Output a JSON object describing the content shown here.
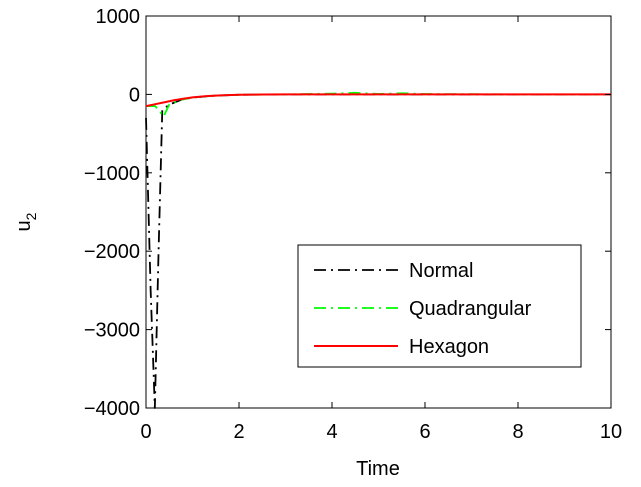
{
  "chart_data": {
    "type": "line",
    "xlabel": "Time",
    "ylabel": "u",
    "ylabel_subscript": "2",
    "xlim": [
      0,
      10
    ],
    "ylim": [
      -4000,
      1000
    ],
    "xticks": [
      0,
      2,
      4,
      6,
      8,
      10
    ],
    "yticks": [
      1000,
      0,
      -1000,
      -2000,
      -3000,
      -4000
    ],
    "xtick_labels": [
      "0",
      "2",
      "4",
      "6",
      "8",
      "10"
    ],
    "ytick_labels": [
      "1000",
      "0",
      "−1000",
      "−2000",
      "−3000",
      "−4000"
    ],
    "grid": false,
    "legend_position": "lower-right",
    "series": [
      {
        "name": "Normal",
        "color": "#000000",
        "style": "dash-dot",
        "points": [
          [
            0,
            -300
          ],
          [
            0.1,
            -2500
          ],
          [
            0.19,
            -4000
          ],
          [
            0.27,
            -2000
          ],
          [
            0.35,
            -200
          ],
          [
            0.5,
            -130
          ],
          [
            0.75,
            -70
          ],
          [
            1.0,
            -40
          ],
          [
            1.5,
            -15
          ],
          [
            2.0,
            -5
          ],
          [
            3.0,
            0
          ],
          [
            4.0,
            0
          ],
          [
            6.0,
            0
          ],
          [
            8.0,
            0
          ],
          [
            10.0,
            0
          ]
        ]
      },
      {
        "name": "Quadrangular",
        "color": "#00ff00",
        "style": "dash-dot",
        "points": [
          [
            0,
            -150
          ],
          [
            0.2,
            -150
          ],
          [
            0.38,
            -280
          ],
          [
            0.5,
            -130
          ],
          [
            0.75,
            -70
          ],
          [
            1.0,
            -40
          ],
          [
            1.5,
            -15
          ],
          [
            2.0,
            -5
          ],
          [
            3.0,
            0
          ],
          [
            4.0,
            10
          ],
          [
            4.5,
            20
          ],
          [
            5.0,
            5
          ],
          [
            5.5,
            15
          ],
          [
            6.0,
            5
          ],
          [
            8.0,
            0
          ],
          [
            10.0,
            0
          ]
        ]
      },
      {
        "name": "Hexagon",
        "color": "#ff0000",
        "style": "solid",
        "points": [
          [
            0,
            -150
          ],
          [
            0.2,
            -125
          ],
          [
            0.4,
            -100
          ],
          [
            0.6,
            -75
          ],
          [
            0.8,
            -55
          ],
          [
            1.0,
            -38
          ],
          [
            1.3,
            -22
          ],
          [
            1.6,
            -12
          ],
          [
            2.0,
            -5
          ],
          [
            2.5,
            -2
          ],
          [
            3.0,
            0
          ],
          [
            4.0,
            0
          ],
          [
            6.0,
            0
          ],
          [
            8.0,
            0
          ],
          [
            10.0,
            0
          ]
        ]
      }
    ]
  }
}
